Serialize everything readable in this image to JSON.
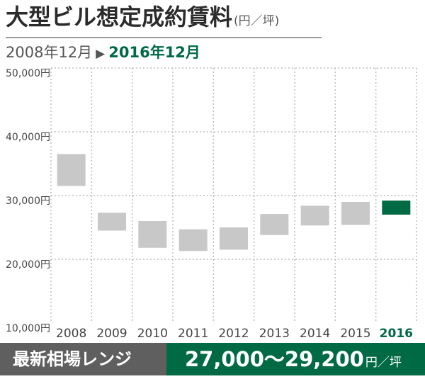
{
  "header": {
    "title": "大型ビル想定成約賃料",
    "title_unit": "(円／坪)",
    "period_from": "2008年12月",
    "period_arrow": "▶",
    "period_to": "2016年12月"
  },
  "footer": {
    "label": "最新相場レンジ",
    "range_value": "27,000〜29,200",
    "range_unit": "円／坪"
  },
  "colors": {
    "range_bar": "#c8c8c8",
    "highlight_bar": "#006a45",
    "highlight_text": "#006a45",
    "grid": "#bdbdbd",
    "footer_left_bg": "#5f5f5f",
    "footer_right_bg": "#006a45"
  },
  "chart_data": {
    "type": "range-bar",
    "categories": [
      "2008",
      "2009",
      "2010",
      "2011",
      "2012",
      "2013",
      "2014",
      "2015",
      "2016"
    ],
    "low": [
      31500,
      24500,
      21800,
      21300,
      21500,
      23800,
      25300,
      25400,
      27000
    ],
    "high": [
      36500,
      27300,
      26000,
      24700,
      25000,
      27100,
      28400,
      29000,
      29200
    ],
    "highlight_index": 8,
    "yticks": [
      10000,
      20000,
      30000,
      40000,
      50000
    ],
    "ytick_labels": [
      "10,000円",
      "20,000円",
      "30,000円",
      "40,000円",
      "50,000円"
    ],
    "ylim": [
      10000,
      50000
    ],
    "grid": true,
    "grid_style": "dotted"
  }
}
